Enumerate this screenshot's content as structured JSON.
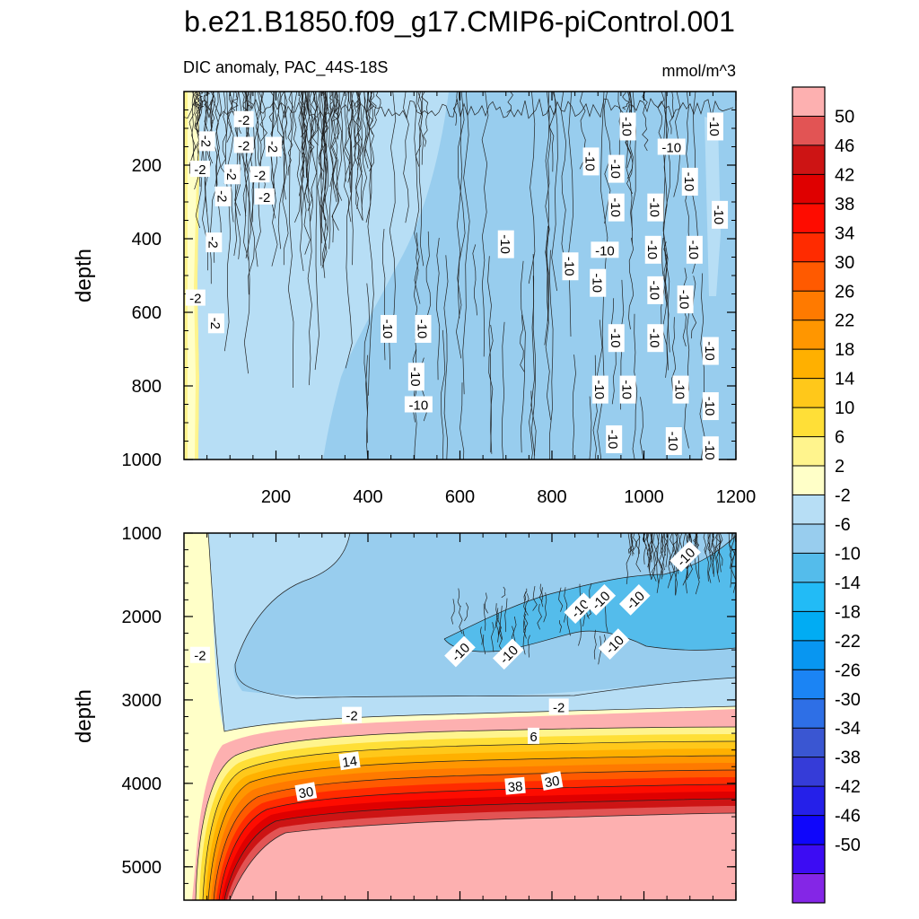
{
  "figure": {
    "title": "b.e21.B1850.f09_g17.CMIP6-piControl.001"
  },
  "chart_data": [
    {
      "type": "heatmap",
      "panel": "upper",
      "title": "DIC anomaly, PAC_44S-18S",
      "units": "mmol/m^3",
      "xlabel": "",
      "ylabel": "depth",
      "xlim": [
        0,
        1200
      ],
      "ylim": [
        1000,
        0
      ],
      "x_ticks": [
        "200",
        "400",
        "600",
        "800",
        "1000",
        "1200"
      ],
      "y_ticks": [
        "200",
        "400",
        "600",
        "800",
        "1000"
      ],
      "contour_labels": [
        {
          "text": "-2",
          "x": 130,
          "y": 75
        },
        {
          "text": "-2",
          "x": 50,
          "y": 135
        },
        {
          "text": "-2",
          "x": 130,
          "y": 145
        },
        {
          "text": "-2",
          "x": 195,
          "y": 150
        },
        {
          "text": "-2",
          "x": 35,
          "y": 210
        },
        {
          "text": "-2",
          "x": 105,
          "y": 225
        },
        {
          "text": "-2",
          "x": 165,
          "y": 225
        },
        {
          "text": "-2",
          "x": 85,
          "y": 285
        },
        {
          "text": "-2",
          "x": 175,
          "y": 285
        },
        {
          "text": "-2",
          "x": 65,
          "y": 410
        },
        {
          "text": "-2",
          "x": 25,
          "y": 560
        },
        {
          "text": "-2",
          "x": 70,
          "y": 630
        },
        {
          "text": "-10",
          "x": 965,
          "y": 95
        },
        {
          "text": "-10",
          "x": 1060,
          "y": 150
        },
        {
          "text": "-10",
          "x": 1155,
          "y": 95
        },
        {
          "text": "-10",
          "x": 885,
          "y": 190
        },
        {
          "text": "-10",
          "x": 940,
          "y": 210
        },
        {
          "text": "-10",
          "x": 1100,
          "y": 245
        },
        {
          "text": "-10",
          "x": 940,
          "y": 315
        },
        {
          "text": "-10",
          "x": 1025,
          "y": 315
        },
        {
          "text": "-10",
          "x": 1165,
          "y": 335
        },
        {
          "text": "-10",
          "x": 700,
          "y": 415
        },
        {
          "text": "-10",
          "x": 915,
          "y": 430
        },
        {
          "text": "-10",
          "x": 1020,
          "y": 430
        },
        {
          "text": "-10",
          "x": 1110,
          "y": 430
        },
        {
          "text": "-10",
          "x": 840,
          "y": 475
        },
        {
          "text": "-10",
          "x": 900,
          "y": 520
        },
        {
          "text": "-10",
          "x": 1025,
          "y": 540
        },
        {
          "text": "-10",
          "x": 1090,
          "y": 565
        },
        {
          "text": "-10",
          "x": 445,
          "y": 645
        },
        {
          "text": "-10",
          "x": 520,
          "y": 645
        },
        {
          "text": "-10",
          "x": 940,
          "y": 670
        },
        {
          "text": "-10",
          "x": 1025,
          "y": 670
        },
        {
          "text": "-10",
          "x": 1145,
          "y": 705
        },
        {
          "text": "-10",
          "x": 505,
          "y": 775
        },
        {
          "text": "-10",
          "x": 905,
          "y": 810
        },
        {
          "text": "-10",
          "x": 965,
          "y": 810
        },
        {
          "text": "-10",
          "x": 1080,
          "y": 810
        },
        {
          "text": "-10",
          "x": 510,
          "y": 850
        },
        {
          "text": "-10",
          "x": 1145,
          "y": 855
        },
        {
          "text": "-10",
          "x": 935,
          "y": 945
        },
        {
          "text": "-10",
          "x": 1065,
          "y": 950
        },
        {
          "text": "-10",
          "x": 1145,
          "y": 975
        }
      ]
    },
    {
      "type": "heatmap",
      "panel": "lower",
      "xlabel": "",
      "ylabel": "depth",
      "xlim": [
        0,
        1200
      ],
      "ylim": [
        5400,
        1000
      ],
      "y_ticks": [
        "1000",
        "2000",
        "3000",
        "4000",
        "5000"
      ],
      "contour_labels": [
        {
          "text": "-10",
          "x": 1090,
          "y": 1280
        },
        {
          "text": "-10",
          "x": 860,
          "y": 1900
        },
        {
          "text": "-10",
          "x": 905,
          "y": 1800
        },
        {
          "text": "-10",
          "x": 980,
          "y": 1800
        },
        {
          "text": "-10",
          "x": 600,
          "y": 2420
        },
        {
          "text": "-10",
          "x": 705,
          "y": 2450
        },
        {
          "text": "-10",
          "x": 935,
          "y": 2330
        },
        {
          "text": "-2",
          "x": 35,
          "y": 2460
        },
        {
          "text": "-2",
          "x": 365,
          "y": 3180
        },
        {
          "text": "-2",
          "x": 815,
          "y": 3080
        },
        {
          "text": "6",
          "x": 760,
          "y": 3430
        },
        {
          "text": "14",
          "x": 360,
          "y": 3730
        },
        {
          "text": "30",
          "x": 265,
          "y": 4100
        },
        {
          "text": "38",
          "x": 720,
          "y": 4030
        },
        {
          "text": "30",
          "x": 800,
          "y": 3970
        }
      ]
    }
  ],
  "colorbar": {
    "labels": [
      "50",
      "46",
      "42",
      "38",
      "34",
      "30",
      "26",
      "22",
      "18",
      "14",
      "10",
      "6",
      "2",
      "-2",
      "-6",
      "-10",
      "-14",
      "-18",
      "-22",
      "-26",
      "-30",
      "-34",
      "-38",
      "-42",
      "-46",
      "-50"
    ],
    "colors": [
      "#fdb0b0",
      "#e25454",
      "#cd1414",
      "#df0000",
      "#fe0c00",
      "#ff2b00",
      "#ff5a00",
      "#ff7a00",
      "#ff9600",
      "#ffb000",
      "#ffc81a",
      "#ffdf37",
      "#fff48d",
      "#ffffc8",
      "#b7def5",
      "#98cdee",
      "#54bceb",
      "#22bbf6",
      "#01acf3",
      "#0896f1",
      "#1b84f4",
      "#2e6fe6",
      "#3a56d2",
      "#353cd8",
      "#2520e9",
      "#0f06fb",
      "#3c0cf3",
      "#8426e6"
    ]
  }
}
